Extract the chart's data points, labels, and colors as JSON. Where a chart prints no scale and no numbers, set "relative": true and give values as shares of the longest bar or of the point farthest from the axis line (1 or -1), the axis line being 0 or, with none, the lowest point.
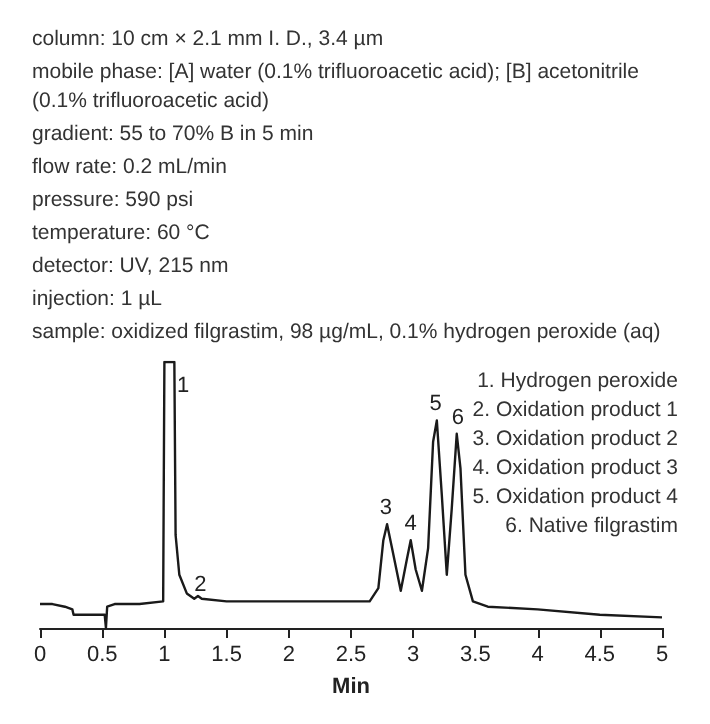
{
  "chart_data": {
    "type": "line",
    "relative": true,
    "xlabel": "Min",
    "color": "#1a1a1a",
    "marker": "none",
    "tick_labels": "x",
    "xlim": [
      0,
      5
    ],
    "xticks": [
      0,
      0.5,
      1,
      1.5,
      2,
      2.5,
      3,
      3.5,
      4,
      4.5,
      5
    ],
    "x": [
      0,
      0.1,
      0.2,
      0.26,
      0.27,
      0.4,
      0.52,
      0.53,
      0.54,
      0.6,
      0.8,
      0.99,
      1.0,
      1.08,
      1.09,
      1.12,
      1.18,
      1.24,
      1.27,
      1.3,
      1.5,
      2.0,
      2.5,
      2.65,
      2.72,
      2.76,
      2.79,
      2.83,
      2.9,
      2.95,
      2.98,
      3.02,
      3.07,
      3.12,
      3.16,
      3.19,
      3.23,
      3.27,
      3.31,
      3.35,
      3.38,
      3.42,
      3.48,
      3.6,
      4,
      4.5,
      5
    ],
    "values": [
      0.09,
      0.09,
      0.08,
      0.07,
      0.05,
      0.05,
      0.05,
      0,
      0.08,
      0.09,
      0.09,
      0.1,
      1,
      1,
      0.35,
      0.2,
      0.13,
      0.11,
      0.12,
      0.11,
      0.1,
      0.1,
      0.1,
      0.1,
      0.15,
      0.33,
      0.39,
      0.3,
      0.14,
      0.26,
      0.33,
      0.22,
      0.14,
      0.3,
      0.7,
      0.78,
      0.5,
      0.2,
      0.45,
      0.73,
      0.6,
      0.2,
      0.1,
      0.08,
      0.07,
      0.05,
      0.04
    ],
    "annotations": [
      "column: 10 cm × 2.1 mm I. D., 3.4 µm",
      "mobile phase: [A] water (0.1% trifluoroacetic acid); [B] acetonitrile (0.1% trifluoroacetic acid)",
      "gradient: 55 to 70% B in 5 min",
      "flow rate: 0.2 mL/min",
      "pressure: 590 psi",
      "temperature: 60 °C",
      "detector: UV, 215 nm",
      "injection: 1 µL",
      "sample: oxidized filgrastim, 98 µg/mL, 0.1% hydrogen peroxide (aq)",
      "1. Hydrogen peroxide",
      "2. Oxidation product 1",
      "3. Oxidation product 2",
      "4. Oxidation product 3",
      "5. Oxidation product 4",
      "6. Native filgrastim",
      {
        "text": "1",
        "x": 1.15,
        "y": 0.87
      },
      {
        "text": "2",
        "x": 1.29,
        "y": 0.12
      },
      {
        "text": "3",
        "x": 2.78,
        "y": 0.41
      },
      {
        "text": "4",
        "x": 2.98,
        "y": 0.35
      },
      {
        "text": "5",
        "x": 3.18,
        "y": 0.8
      },
      {
        "text": "6",
        "x": 3.36,
        "y": 0.75
      }
    ]
  }
}
